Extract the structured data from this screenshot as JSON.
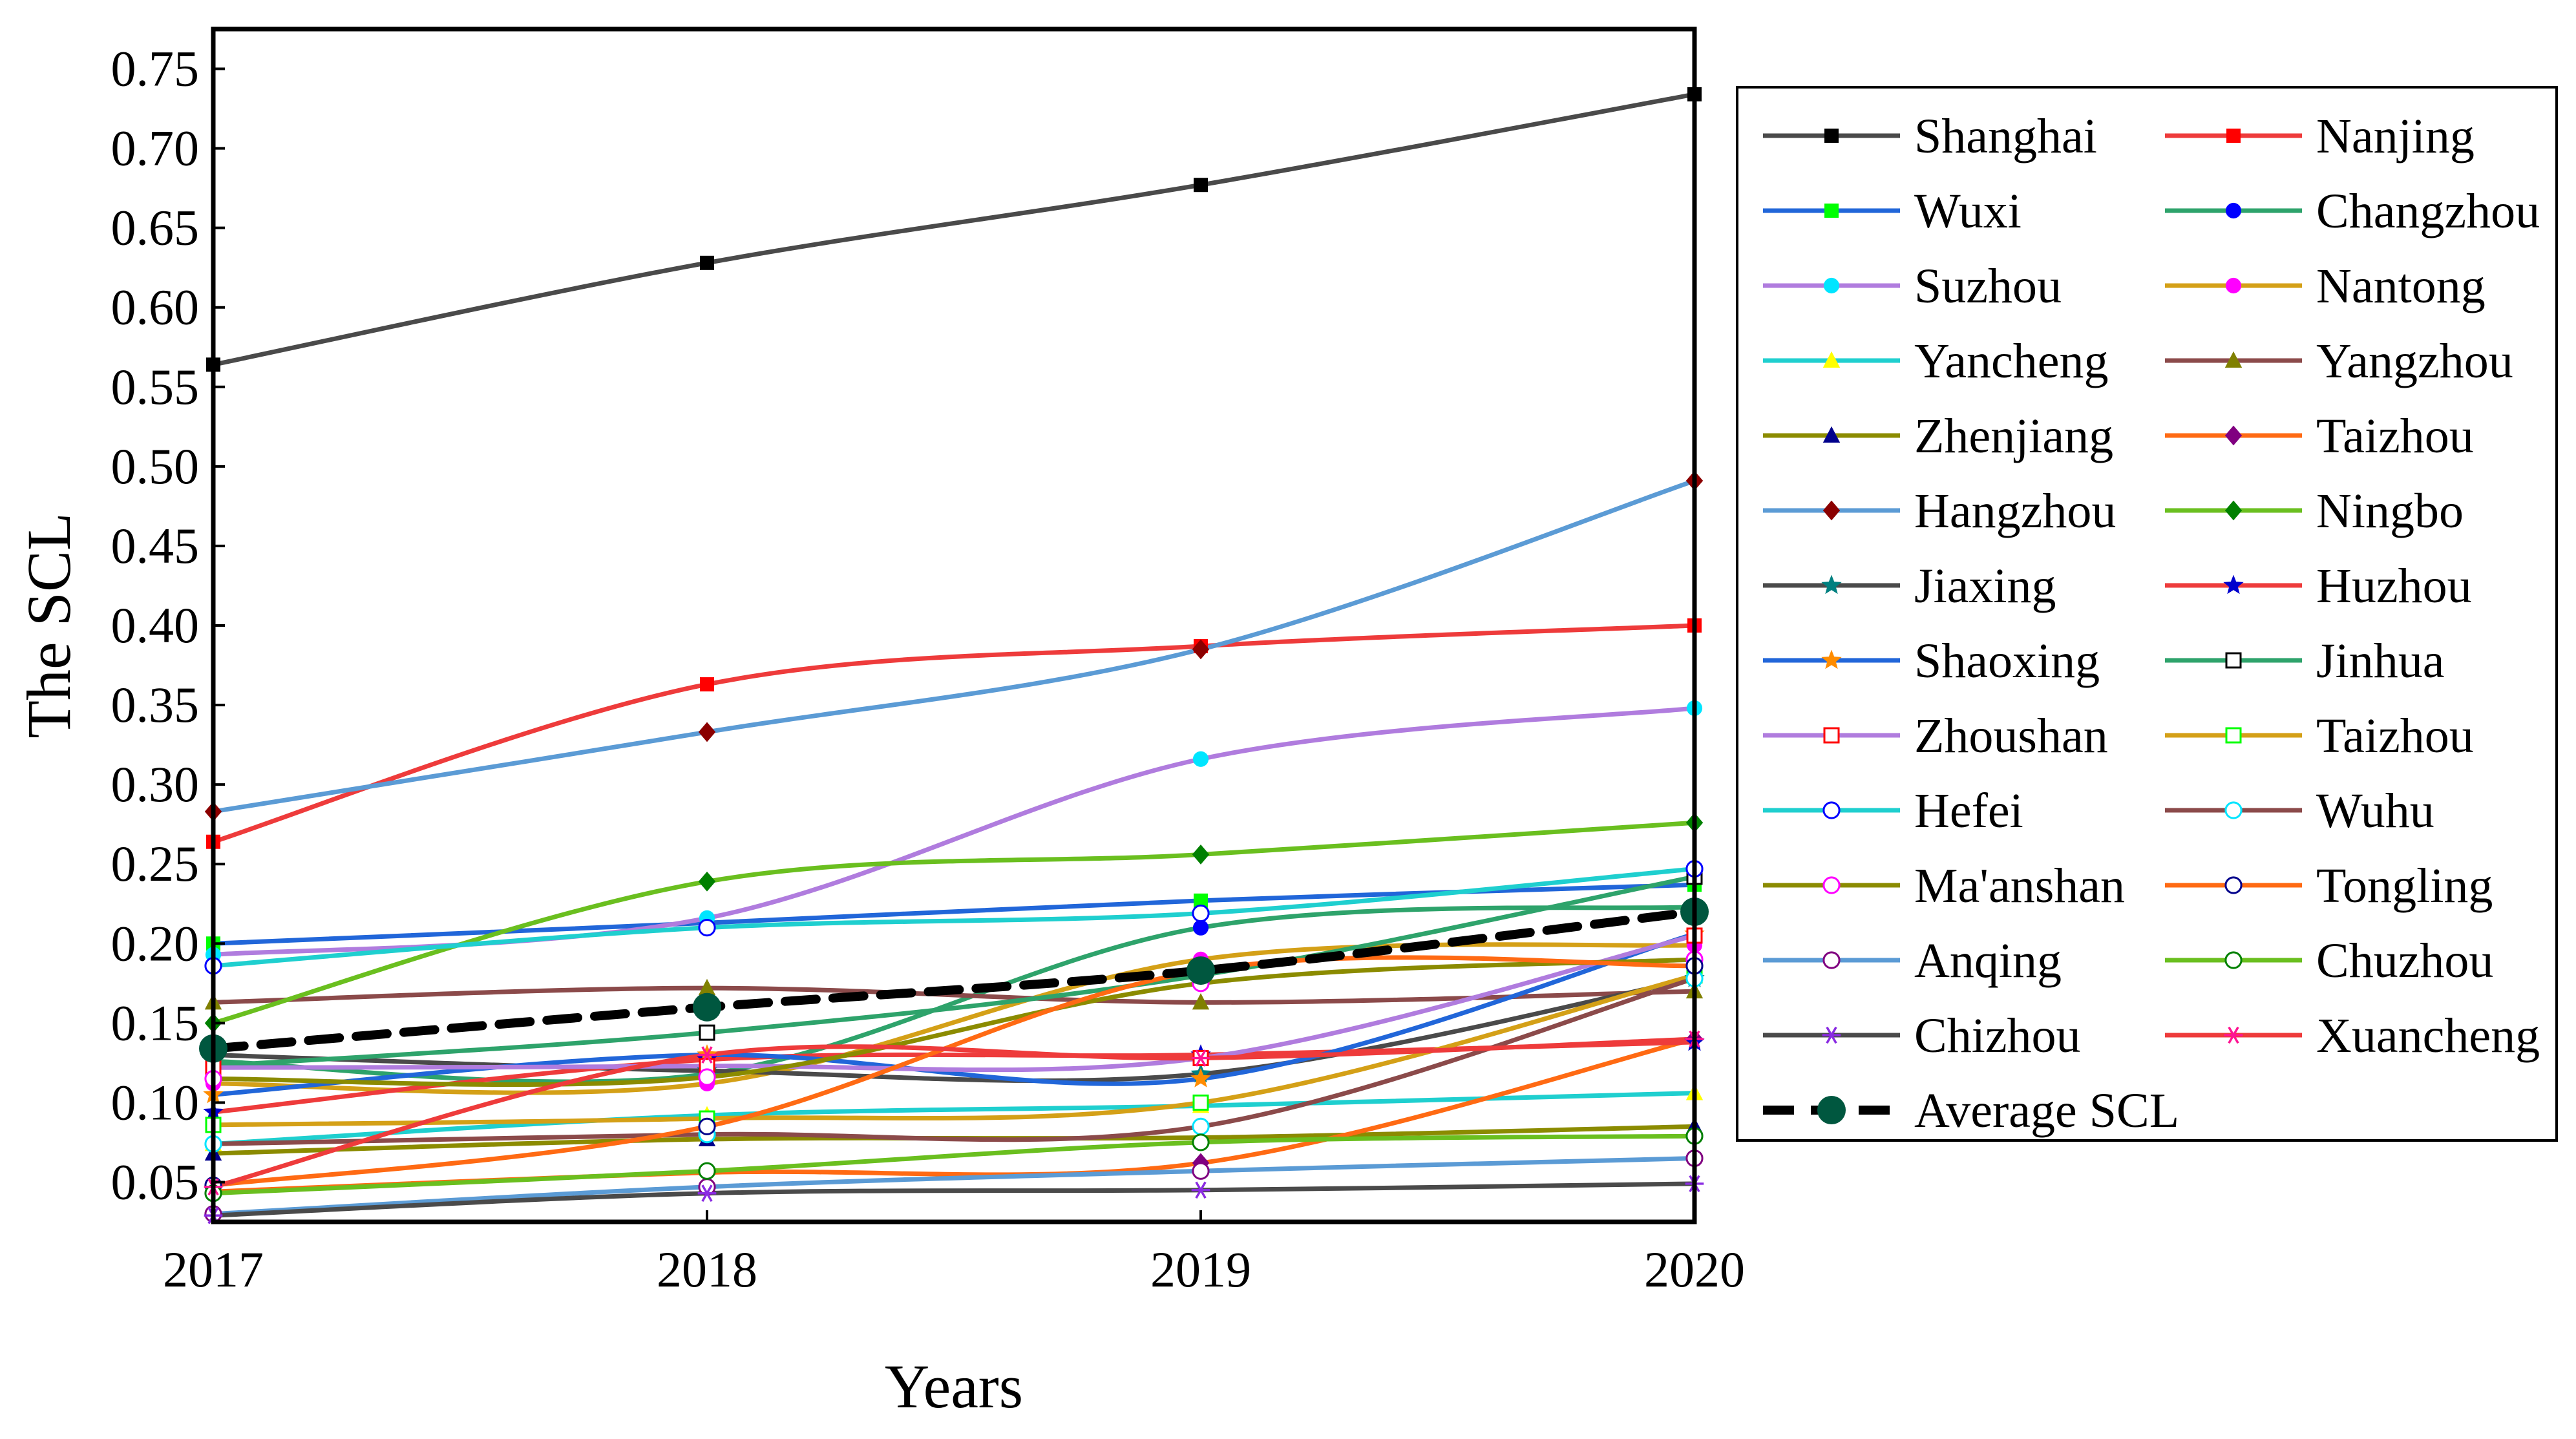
{
  "chart_data": {
    "type": "line",
    "title": "",
    "xlabel": "Years",
    "ylabel": "The SCL",
    "x": [
      2017,
      2018,
      2019,
      2020
    ],
    "ylim": [
      0.025,
      0.775
    ],
    "yticks": [
      0.05,
      0.1,
      0.15,
      0.2,
      0.25,
      0.3,
      0.35,
      0.4,
      0.45,
      0.5,
      0.55,
      0.6,
      0.65,
      0.7,
      0.75
    ],
    "ytick_labels": [
      "0.05",
      "0.10",
      "0.15",
      "0.20",
      "0.25",
      "0.30",
      "0.35",
      "0.40",
      "0.45",
      "0.50",
      "0.55",
      "0.60",
      "0.65",
      "0.70",
      "0.75"
    ],
    "xtick_labels": [
      "2017",
      "2018",
      "2019",
      "2020"
    ],
    "legend_position": "right",
    "series": [
      {
        "name": "Shanghai",
        "color": "#4a4a4a",
        "marker": "square-filled",
        "marker_color": "#000000",
        "values": [
          0.564,
          0.628,
          0.677,
          0.734
        ]
      },
      {
        "name": "Nanjing",
        "color": "#ee3b3b",
        "marker": "square-filled",
        "marker_color": "#ff0000",
        "values": [
          0.264,
          0.363,
          0.387,
          0.4
        ]
      },
      {
        "name": "Wuxi",
        "color": "#2166d9",
        "marker": "square-filled",
        "marker_color": "#00ff00",
        "values": [
          0.2,
          0.213,
          0.227,
          0.237
        ]
      },
      {
        "name": "Changzhou",
        "color": "#2ea36b",
        "marker": "circle-filled",
        "marker_color": "#0000ff",
        "values": [
          0.126,
          0.118,
          0.21,
          0.223
        ]
      },
      {
        "name": "Suzhou",
        "color": "#b07cde",
        "marker": "circle-filled",
        "marker_color": "#00e5ff",
        "values": [
          0.193,
          0.216,
          0.316,
          0.348
        ]
      },
      {
        "name": "Nantong",
        "color": "#d4a017",
        "marker": "circle-filled",
        "marker_color": "#ff00ff",
        "values": [
          0.112,
          0.112,
          0.19,
          0.199
        ]
      },
      {
        "name": "Yancheng",
        "color": "#1fcfcf",
        "marker": "triangle-filled",
        "marker_color": "#ffff00",
        "values": [
          0.074,
          0.092,
          0.098,
          0.106
        ]
      },
      {
        "name": "Yangzhou",
        "color": "#8b4a4a",
        "marker": "triangle-filled",
        "marker_color": "#808000",
        "values": [
          0.163,
          0.172,
          0.163,
          0.17
        ]
      },
      {
        "name": "Zhenjiang",
        "color": "#8b8b00",
        "marker": "triangle-filled",
        "marker_color": "#00008b",
        "values": [
          0.068,
          0.077,
          0.078,
          0.085
        ]
      },
      {
        "name": "Taizhou",
        "color": "#ff6a13",
        "marker": "diamond-filled",
        "marker_color": "#800080",
        "values": [
          0.044,
          0.056,
          0.062,
          0.14
        ]
      },
      {
        "name": "Hangzhou",
        "color": "#5b9bd5",
        "marker": "diamond-filled",
        "marker_color": "#8b0000",
        "values": [
          0.283,
          0.333,
          0.385,
          0.491
        ]
      },
      {
        "name": "Ningbo",
        "color": "#6abf1f",
        "marker": "diamond-filled",
        "marker_color": "#008000",
        "values": [
          0.15,
          0.239,
          0.256,
          0.276
        ]
      },
      {
        "name": "Jiaxing",
        "color": "#4a4a4a",
        "marker": "star-filled",
        "marker_color": "#008080",
        "values": [
          0.13,
          0.12,
          0.118,
          0.178
        ]
      },
      {
        "name": "Huzhou",
        "color": "#ee3b3b",
        "marker": "star-filled",
        "marker_color": "#0000cd",
        "values": [
          0.094,
          0.127,
          0.13,
          0.138
        ]
      },
      {
        "name": "Shaoxing",
        "color": "#2166d9",
        "marker": "star-filled",
        "marker_color": "#ff8c00",
        "values": [
          0.105,
          0.13,
          0.115,
          0.206
        ]
      },
      {
        "name": "Jinhua",
        "color": "#2ea36b",
        "marker": "square-open",
        "marker_color": "#000000",
        "values": [
          0.123,
          0.144,
          0.18,
          0.242
        ]
      },
      {
        "name": "Zhoushan",
        "color": "#b07cde",
        "marker": "square-open",
        "marker_color": "#ff0000",
        "values": [
          0.122,
          0.123,
          0.128,
          0.205
        ]
      },
      {
        "name": "Taizhou",
        "color": "#d4a017",
        "marker": "square-open",
        "marker_color": "#00ff00",
        "values": [
          0.086,
          0.09,
          0.1,
          0.18
        ]
      },
      {
        "name": "Hefei",
        "color": "#1fcfcf",
        "marker": "circle-open",
        "marker_color": "#0000ff",
        "values": [
          0.186,
          0.21,
          0.219,
          0.247
        ]
      },
      {
        "name": "Wuhu",
        "color": "#8b4a4a",
        "marker": "circle-open",
        "marker_color": "#00e5ff",
        "values": [
          0.074,
          0.08,
          0.085,
          0.178
        ]
      },
      {
        "name": "Ma'anshan",
        "color": "#8b8b00",
        "marker": "circle-open",
        "marker_color": "#ff00ff",
        "values": [
          0.115,
          0.116,
          0.175,
          0.19
        ]
      },
      {
        "name": "Tongling",
        "color": "#ff6a13",
        "marker": "circle-open",
        "marker_color": "#00008b",
        "values": [
          0.048,
          0.085,
          0.183,
          0.186
        ]
      },
      {
        "name": "Anqing",
        "color": "#5b9bd5",
        "marker": "circle-open",
        "marker_color": "#800080",
        "values": [
          0.03,
          0.047,
          0.057,
          0.065
        ]
      },
      {
        "name": "Chuzhou",
        "color": "#6abf1f",
        "marker": "circle-open",
        "marker_color": "#008000",
        "values": [
          0.043,
          0.057,
          0.075,
          0.079
        ]
      },
      {
        "name": "Chizhou",
        "color": "#4a4a4a",
        "marker": "asterisk",
        "marker_color": "#8a2be2",
        "values": [
          0.029,
          0.043,
          0.045,
          0.049
        ]
      },
      {
        "name": "Xuancheng",
        "color": "#ee3b3b",
        "marker": "asterisk",
        "marker_color": "#ff1493",
        "values": [
          0.047,
          0.13,
          0.128,
          0.14
        ]
      },
      {
        "name": "Average SCL",
        "color": "#000000",
        "marker": "circle-filled",
        "marker_color": "#00573f",
        "dashed": true,
        "values": [
          0.134,
          0.16,
          0.183,
          0.22
        ]
      }
    ]
  }
}
